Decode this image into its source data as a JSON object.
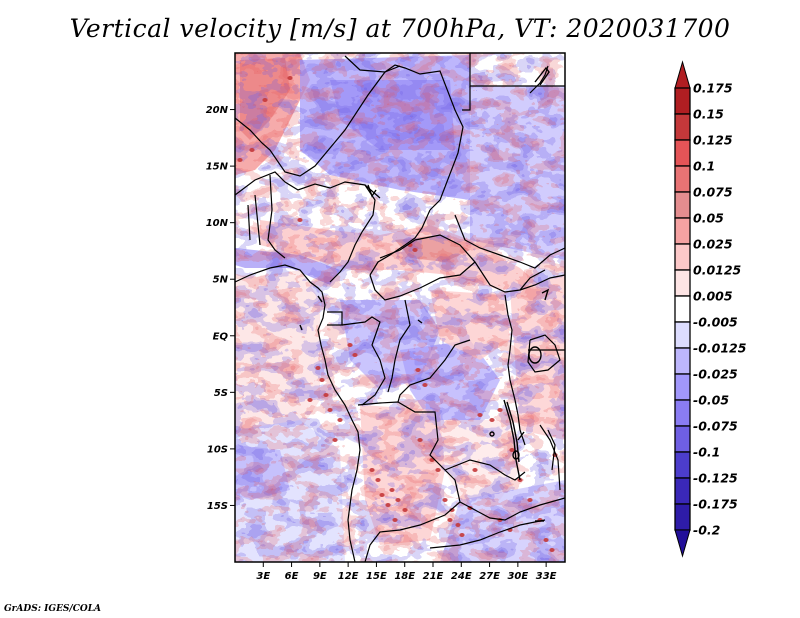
{
  "title": "Vertical velocity [m/s] at 700hPa, VT: 2020031700",
  "credit": "GrADS: IGES/COLA",
  "map": {
    "variable": "Vertical velocity",
    "units": "m/s",
    "level": "700hPa",
    "valid_time": "2020031700",
    "lon_range": [
      0,
      35
    ],
    "lat_range": [
      -20,
      25
    ],
    "lat_ticks": [
      {
        "value": 20,
        "label": "20N"
      },
      {
        "value": 15,
        "label": "15N"
      },
      {
        "value": 10,
        "label": "10N"
      },
      {
        "value": 5,
        "label": "5N"
      },
      {
        "value": 0,
        "label": "EQ"
      },
      {
        "value": -5,
        "label": "5S"
      },
      {
        "value": -10,
        "label": "10S"
      },
      {
        "value": -15,
        "label": "15S"
      }
    ],
    "lon_ticks": [
      {
        "value": 3,
        "label": "3E"
      },
      {
        "value": 6,
        "label": "6E"
      },
      {
        "value": 9,
        "label": "9E"
      },
      {
        "value": 12,
        "label": "12E"
      },
      {
        "value": 15,
        "label": "15E"
      },
      {
        "value": 18,
        "label": "18E"
      },
      {
        "value": 21,
        "label": "21E"
      },
      {
        "value": 24,
        "label": "24E"
      },
      {
        "value": 27,
        "label": "27E"
      },
      {
        "value": 30,
        "label": "30E"
      },
      {
        "value": 33,
        "label": "33E"
      }
    ],
    "field_description": "Mottled field of positive (red, rising) and negative (blue, sinking) vertical velocity over Central Africa; strong red over northwest Sahara and a red band near 6-9N; stronger dark red cells over Angola/DRC/Zambia highlands; weak mixed values over the Gulf of Guinea and South Atlantic."
  },
  "colorbar": {
    "levels": [
      {
        "label": "0.175",
        "color": "#b01e22"
      },
      {
        "label": "0.15",
        "color": "#c4383a"
      },
      {
        "label": "0.125",
        "color": "#e45457"
      },
      {
        "label": "0.1",
        "color": "#e87374"
      },
      {
        "label": "0.075",
        "color": "#e48d8f"
      },
      {
        "label": "0.05",
        "color": "#f5a2a2"
      },
      {
        "label": "0.025",
        "color": "#fcc8c8"
      },
      {
        "label": "0.0125",
        "color": "#fde4e4"
      },
      {
        "label": "0.005",
        "color": "#ffffff"
      },
      {
        "label": "-0.005",
        "color": "#dcdcfe"
      },
      {
        "label": "-0.0125",
        "color": "#bdb6fc"
      },
      {
        "label": "-0.025",
        "color": "#a197fb"
      },
      {
        "label": "-0.05",
        "color": "#8a7cf3"
      },
      {
        "label": "-0.075",
        "color": "#6f5fe3"
      },
      {
        "label": "-0.1",
        "color": "#4c3dcc"
      },
      {
        "label": "-0.125",
        "color": "#3a28b8"
      },
      {
        "label": "-0.175",
        "color": "#2e1ca8"
      },
      {
        "label": "-0.2",
        "color": "#220f99"
      }
    ],
    "top_arrow_color": "#b01e22",
    "bottom_arrow_color": "#220f99"
  }
}
